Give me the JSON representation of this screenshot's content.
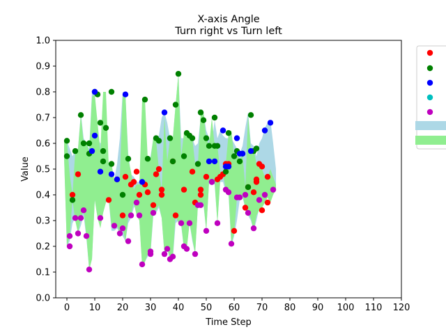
{
  "chart_data": {
    "type": "scatter",
    "title": "X-axis Angle",
    "subtitle": "Turn right vs Turn left",
    "xlabel": "Time Step",
    "ylabel": "Value",
    "xlim": [
      -4,
      120
    ],
    "ylim": [
      0,
      1
    ],
    "x_ticks": [
      0,
      10,
      20,
      30,
      40,
      50,
      60,
      70,
      80,
      90,
      100,
      110,
      120
    ],
    "y_ticks": [
      0.0,
      0.1,
      0.2,
      0.3,
      0.4,
      0.5,
      0.6,
      0.7,
      0.8,
      0.9,
      1.0
    ],
    "grid": false,
    "legend": {
      "placement": "right",
      "entries": [
        {
          "color": "#ff0000",
          "kind": "marker"
        },
        {
          "color": "#008000",
          "kind": "marker"
        },
        {
          "color": "#0000ff",
          "kind": "marker"
        },
        {
          "color": "#00bfbf",
          "kind": "marker"
        },
        {
          "color": "#bf00bf",
          "kind": "marker"
        },
        {
          "color": "#add8e6",
          "kind": "band"
        },
        {
          "color": "#90ee90",
          "kind": "band"
        }
      ]
    },
    "bands": [
      {
        "color": "#add8e6",
        "x": [
          -1,
          0,
          1,
          2,
          3,
          4,
          5,
          6,
          7,
          8,
          9,
          10,
          11,
          12,
          13,
          14,
          15,
          16,
          17,
          18,
          19,
          20,
          21,
          22,
          23,
          24,
          25,
          26,
          27,
          28,
          29,
          30,
          31,
          32,
          33,
          34,
          35,
          36,
          37,
          38,
          39,
          40,
          41,
          42,
          43,
          44,
          45,
          46,
          47,
          48,
          49,
          50,
          51,
          52,
          53,
          54,
          55,
          56,
          57,
          58,
          59,
          60,
          61,
          62,
          63,
          64,
          65,
          66,
          67,
          68,
          69,
          70,
          71,
          72,
          73,
          74,
          75
        ],
        "upper": [
          0.61,
          0.61,
          0.58,
          0.55,
          0.57,
          0.58,
          0.72,
          0.62,
          0.6,
          0.58,
          0.8,
          0.8,
          0.62,
          0.6,
          0.6,
          0.58,
          0.52,
          0.47,
          0.46,
          0.52,
          0.62,
          0.8,
          0.79,
          0.56,
          0.48,
          0.47,
          0.45,
          0.45,
          0.45,
          0.44,
          0.52,
          0.55,
          0.62,
          0.62,
          0.63,
          0.7,
          0.72,
          0.68,
          0.62,
          0.62,
          0.75,
          0.87,
          0.62,
          0.62,
          0.65,
          0.64,
          0.62,
          0.59,
          0.6,
          0.7,
          0.72,
          0.65,
          0.62,
          0.6,
          0.69,
          0.62,
          0.65,
          0.63,
          0.62,
          0.62,
          0.62,
          0.6,
          0.58,
          0.56,
          0.59,
          0.66,
          0.72,
          0.6,
          0.59,
          0.55,
          0.6,
          0.62,
          0.66,
          0.68,
          0.69,
          0.6,
          0.5
        ],
        "lower": [
          0.55,
          0.2,
          0.22,
          0.29,
          0.31,
          0.25,
          0.28,
          0.32,
          0.23,
          0.11,
          0.15,
          0.38,
          0.31,
          0.28,
          0.33,
          0.37,
          0.38,
          0.26,
          0.26,
          0.27,
          0.25,
          0.24,
          0.22,
          0.29,
          0.31,
          0.35,
          0.36,
          0.3,
          0.13,
          0.14,
          0.16,
          0.17,
          0.32,
          0.33,
          0.35,
          0.31,
          0.17,
          0.2,
          0.14,
          0.15,
          0.29,
          0.3,
          0.28,
          0.19,
          0.2,
          0.29,
          0.22,
          0.17,
          0.36,
          0.37,
          0.36,
          0.26,
          0.45,
          0.45,
          0.44,
          0.29,
          0.45,
          0.45,
          0.41,
          0.4,
          0.2,
          0.24,
          0.3,
          0.38,
          0.39,
          0.35,
          0.32,
          0.3,
          0.26,
          0.3,
          0.35,
          0.35,
          0.37,
          0.39,
          0.4,
          0.41,
          0.42
        ]
      },
      {
        "color": "#90ee90",
        "x": [
          -1,
          0,
          1,
          2,
          3,
          4,
          5,
          6,
          7,
          8,
          9,
          10,
          11,
          12,
          13,
          14,
          15,
          16,
          17,
          18,
          19,
          20,
          21,
          22,
          23,
          24,
          25,
          26,
          27,
          28,
          29,
          30,
          31,
          32,
          33,
          34,
          35,
          36,
          37,
          38,
          39,
          40,
          41,
          42,
          43,
          44,
          45,
          46,
          47,
          48,
          49,
          50,
          51,
          52,
          53,
          54,
          55,
          56,
          57,
          58,
          59,
          60,
          61,
          62,
          63,
          64,
          65,
          66,
          67,
          68,
          69,
          70,
          71,
          72,
          73,
          74,
          75
        ],
        "upper": [
          0.61,
          0.61,
          0.48,
          0.4,
          0.57,
          0.58,
          0.71,
          0.6,
          0.6,
          0.57,
          0.78,
          0.79,
          0.68,
          0.57,
          0.8,
          0.8,
          0.51,
          0.52,
          0.46,
          0.45,
          0.47,
          0.78,
          0.79,
          0.54,
          0.49,
          0.42,
          0.44,
          0.44,
          0.77,
          0.77,
          0.54,
          0.54,
          0.62,
          0.61,
          0.5,
          0.42,
          0.7,
          0.53,
          0.62,
          0.62,
          0.75,
          0.87,
          0.55,
          0.64,
          0.63,
          0.62,
          0.62,
          0.52,
          0.52,
          0.72,
          0.72,
          0.62,
          0.59,
          0.7,
          0.59,
          0.59,
          0.49,
          0.49,
          0.52,
          0.64,
          0.65,
          0.55,
          0.57,
          0.53,
          0.56,
          0.43,
          0.71,
          0.57,
          0.58,
          0.52,
          0.52,
          0.5,
          0.47,
          0.47,
          0.5,
          0.47,
          0.44
        ],
        "lower": [
          0.54,
          0.2,
          0.24,
          0.38,
          0.3,
          0.25,
          0.31,
          0.34,
          0.24,
          0.11,
          0.15,
          0.38,
          0.31,
          0.27,
          0.33,
          0.37,
          0.38,
          0.28,
          0.29,
          0.28,
          0.25,
          0.27,
          0.22,
          0.31,
          0.32,
          0.37,
          0.32,
          0.3,
          0.12,
          0.14,
          0.17,
          0.18,
          0.33,
          0.34,
          0.36,
          0.31,
          0.17,
          0.19,
          0.15,
          0.16,
          0.32,
          0.29,
          0.29,
          0.19,
          0.19,
          0.29,
          0.23,
          0.17,
          0.36,
          0.36,
          0.37,
          0.26,
          0.45,
          0.45,
          0.45,
          0.29,
          0.46,
          0.48,
          0.42,
          0.41,
          0.21,
          0.25,
          0.39,
          0.39,
          0.4,
          0.35,
          0.33,
          0.31,
          0.26,
          0.32,
          0.34,
          0.35,
          0.37,
          0.39,
          0.37,
          0.4,
          0.42
        ]
      }
    ],
    "series": [
      {
        "color": "#ff0000",
        "x": [
          2,
          4,
          15,
          18,
          20,
          21,
          23,
          24,
          25,
          26,
          28,
          29,
          31,
          32,
          33,
          34,
          34,
          38,
          39,
          42,
          45,
          46,
          48,
          48,
          50,
          54,
          55,
          56,
          57,
          58,
          60,
          64,
          65,
          67,
          68,
          68,
          69,
          70,
          70,
          72,
          72
        ],
        "y": [
          0.4,
          0.48,
          0.38,
          0.46,
          0.32,
          0.47,
          0.44,
          0.45,
          0.49,
          0.4,
          0.44,
          0.41,
          0.36,
          0.48,
          0.5,
          0.42,
          0.4,
          0.53,
          0.32,
          0.42,
          0.49,
          0.37,
          0.42,
          0.4,
          0.47,
          0.46,
          0.47,
          0.48,
          0.52,
          0.52,
          0.26,
          0.35,
          0.43,
          0.41,
          0.46,
          0.45,
          0.52,
          0.34,
          0.51,
          0.47,
          0.37
        ]
      },
      {
        "color": "#008000",
        "x": [
          0,
          0,
          2,
          3,
          5,
          6,
          8,
          8,
          10,
          11,
          12,
          13,
          13,
          14,
          16,
          16,
          20,
          22,
          28,
          29,
          32,
          33,
          37,
          38,
          39,
          40,
          42,
          43,
          44,
          45,
          47,
          48,
          49,
          50,
          51,
          53,
          53,
          54,
          57,
          58,
          60,
          61,
          62,
          63,
          65,
          66,
          67,
          68
        ],
        "y": [
          0.61,
          0.55,
          0.38,
          0.57,
          0.71,
          0.6,
          0.56,
          0.6,
          0.8,
          0.79,
          0.68,
          0.57,
          0.53,
          0.66,
          0.8,
          0.52,
          0.4,
          0.54,
          0.77,
          0.54,
          0.62,
          0.61,
          0.62,
          0.53,
          0.75,
          0.87,
          0.55,
          0.64,
          0.63,
          0.62,
          0.52,
          0.72,
          0.69,
          0.62,
          0.59,
          0.7,
          0.59,
          0.59,
          0.49,
          0.64,
          0.55,
          0.57,
          0.53,
          0.56,
          0.43,
          0.71,
          0.57,
          0.58
        ]
      },
      {
        "color": "#0000ff",
        "x": [
          9,
          10,
          10,
          12,
          16,
          18,
          21,
          27,
          35,
          51,
          52,
          53,
          56,
          57,
          58,
          61,
          62,
          63,
          66,
          71,
          73
        ],
        "y": [
          0.57,
          0.63,
          0.8,
          0.49,
          0.48,
          0.46,
          0.79,
          0.45,
          0.72,
          0.53,
          0.45,
          0.53,
          0.65,
          0.51,
          0.51,
          0.62,
          0.56,
          0.56,
          0.57,
          0.65,
          0.68
        ]
      },
      {
        "color": "#00bfbf",
        "x": [],
        "y": []
      },
      {
        "color": "#bf00bf",
        "x": [
          1,
          1,
          3,
          4,
          5,
          6,
          7,
          8,
          12,
          17,
          19,
          20,
          22,
          23,
          25,
          26,
          27,
          30,
          30,
          31,
          35,
          36,
          37,
          38,
          41,
          42,
          43,
          44,
          46,
          47,
          48,
          50,
          52,
          54,
          57,
          58,
          59,
          61,
          62,
          64,
          65,
          67,
          69,
          71,
          74
        ],
        "y": [
          0.2,
          0.24,
          0.31,
          0.25,
          0.31,
          0.34,
          0.24,
          0.11,
          0.31,
          0.28,
          0.25,
          0.27,
          0.22,
          0.32,
          0.37,
          0.32,
          0.13,
          0.17,
          0.18,
          0.33,
          0.17,
          0.19,
          0.15,
          0.16,
          0.29,
          0.2,
          0.19,
          0.29,
          0.17,
          0.36,
          0.36,
          0.26,
          0.45,
          0.29,
          0.42,
          0.41,
          0.21,
          0.39,
          0.39,
          0.4,
          0.33,
          0.27,
          0.38,
          0.4,
          0.42
        ]
      }
    ]
  }
}
